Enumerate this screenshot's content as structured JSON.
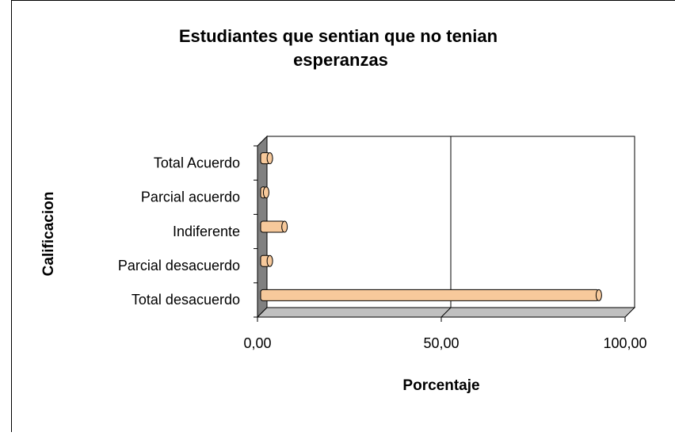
{
  "chart_data": {
    "type": "bar3d_horizontal",
    "title": "Estudiantes que sentian que  no tenian esperanzas",
    "x_label": "Porcentaje",
    "y_label": "Calificacion",
    "categories": [
      "Total  Acuerdo",
      "Parcial  acuerdo",
      "Indiferente",
      "Parcial  desacuerdo",
      "Total desacuerdo"
    ],
    "values": [
      2.5,
      1.5,
      6.5,
      2.5,
      92
    ],
    "color": "#f7c99b",
    "xlim": [
      0,
      100
    ],
    "xticks": [
      {
        "value": 0,
        "label": "0,00"
      },
      {
        "value": 50,
        "label": "50,00"
      },
      {
        "value": 100,
        "label": "100,00"
      }
    ],
    "grid": true
  }
}
